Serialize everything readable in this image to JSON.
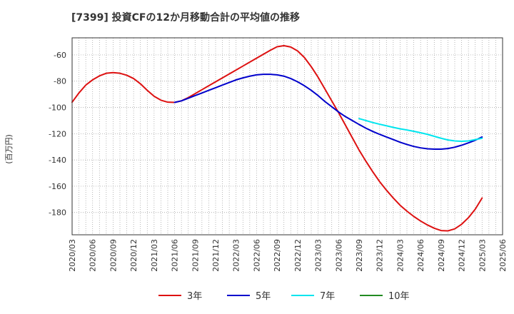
{
  "chart_data": {
    "type": "line",
    "title": "[7399]  投資CFの12か月移動合計の平均値の推移",
    "ylabel": "(百万円)",
    "xlabel": "",
    "ylim": [
      -197,
      -47
    ],
    "yticks": [
      -60,
      -80,
      -100,
      -120,
      -140,
      -160,
      -180
    ],
    "ytick_labels": [
      "-60",
      "-80",
      "-100",
      "-120",
      "-140",
      "-160",
      "-180"
    ],
    "xticks": [
      "2020/03",
      "2020/06",
      "2020/09",
      "2020/12",
      "2021/03",
      "2021/06",
      "2021/09",
      "2021/12",
      "2022/03",
      "2022/06",
      "2022/09",
      "2022/12",
      "2023/03",
      "2023/06",
      "2023/09",
      "2023/12",
      "2024/03",
      "2024/06",
      "2024/09",
      "2024/12",
      "2025/03",
      "2025/06"
    ],
    "x_start": "2020/03",
    "x_end": "2025/06",
    "grid": true,
    "legend_position": "bottom",
    "series": [
      {
        "name": "3年",
        "color": "#dd1111",
        "points": [
          [
            "2020/03",
            -96
          ],
          [
            "2020/04",
            -89
          ],
          [
            "2020/05",
            -83
          ],
          [
            "2020/06",
            -79
          ],
          [
            "2020/07",
            -76
          ],
          [
            "2020/08",
            -74
          ],
          [
            "2020/09",
            -73.5
          ],
          [
            "2020/10",
            -74
          ],
          [
            "2020/11",
            -75.5
          ],
          [
            "2020/12",
            -78
          ],
          [
            "2021/01",
            -82
          ],
          [
            "2021/02",
            -87
          ],
          [
            "2021/03",
            -91.5
          ],
          [
            "2021/04",
            -94.5
          ],
          [
            "2021/05",
            -96
          ],
          [
            "2021/06",
            -96.2
          ],
          [
            "2021/07",
            -95
          ],
          [
            "2021/08",
            -92.5
          ],
          [
            "2021/09",
            -89.5
          ],
          [
            "2021/10",
            -86.5
          ],
          [
            "2021/11",
            -83.5
          ],
          [
            "2021/12",
            -80.5
          ],
          [
            "2022/01",
            -77.5
          ],
          [
            "2022/02",
            -74.5
          ],
          [
            "2022/03",
            -71.5
          ],
          [
            "2022/04",
            -68.5
          ],
          [
            "2022/05",
            -65.5
          ],
          [
            "2022/06",
            -62.5
          ],
          [
            "2022/07",
            -59.5
          ],
          [
            "2022/08",
            -56.5
          ],
          [
            "2022/09",
            -53.8
          ],
          [
            "2022/10",
            -53
          ],
          [
            "2022/11",
            -54
          ],
          [
            "2022/12",
            -57
          ],
          [
            "2023/01",
            -62
          ],
          [
            "2023/02",
            -69
          ],
          [
            "2023/03",
            -77
          ],
          [
            "2023/04",
            -86
          ],
          [
            "2023/05",
            -95
          ],
          [
            "2023/06",
            -104
          ],
          [
            "2023/07",
            -113.5
          ],
          [
            "2023/08",
            -123
          ],
          [
            "2023/09",
            -132.5
          ],
          [
            "2023/10",
            -141
          ],
          [
            "2023/11",
            -149
          ],
          [
            "2023/12",
            -156.5
          ],
          [
            "2024/01",
            -163
          ],
          [
            "2024/02",
            -169
          ],
          [
            "2024/03",
            -174.5
          ],
          [
            "2024/04",
            -179
          ],
          [
            "2024/05",
            -183
          ],
          [
            "2024/06",
            -186.5
          ],
          [
            "2024/07",
            -189.5
          ],
          [
            "2024/08",
            -192
          ],
          [
            "2024/09",
            -193.8
          ],
          [
            "2024/10",
            -194
          ],
          [
            "2024/11",
            -192.5
          ],
          [
            "2024/12",
            -189
          ],
          [
            "2025/01",
            -184
          ],
          [
            "2025/02",
            -177.5
          ],
          [
            "2025/03",
            -169
          ]
        ]
      },
      {
        "name": "5年",
        "color": "#0000cc",
        "points": [
          [
            "2021/06",
            -96.2
          ],
          [
            "2021/07",
            -95
          ],
          [
            "2021/08",
            -93
          ],
          [
            "2021/09",
            -91
          ],
          [
            "2021/10",
            -89
          ],
          [
            "2021/11",
            -87
          ],
          [
            "2021/12",
            -85
          ],
          [
            "2022/01",
            -83
          ],
          [
            "2022/02",
            -81
          ],
          [
            "2022/03",
            -79
          ],
          [
            "2022/04",
            -77.5
          ],
          [
            "2022/05",
            -76.2
          ],
          [
            "2022/06",
            -75.2
          ],
          [
            "2022/07",
            -74.8
          ],
          [
            "2022/08",
            -74.8
          ],
          [
            "2022/09",
            -75.2
          ],
          [
            "2022/10",
            -76.2
          ],
          [
            "2022/11",
            -78
          ],
          [
            "2022/12",
            -80.5
          ],
          [
            "2023/01",
            -83.5
          ],
          [
            "2023/02",
            -87
          ],
          [
            "2023/03",
            -91
          ],
          [
            "2023/04",
            -95.5
          ],
          [
            "2023/05",
            -99.5
          ],
          [
            "2023/06",
            -103.5
          ],
          [
            "2023/07",
            -107
          ],
          [
            "2023/08",
            -110
          ],
          [
            "2023/09",
            -113
          ],
          [
            "2023/10",
            -115.8
          ],
          [
            "2023/11",
            -118.3
          ],
          [
            "2023/12",
            -120.5
          ],
          [
            "2024/01",
            -122.5
          ],
          [
            "2024/02",
            -124.5
          ],
          [
            "2024/03",
            -126.5
          ],
          [
            "2024/04",
            -128.2
          ],
          [
            "2024/05",
            -129.7
          ],
          [
            "2024/06",
            -130.8
          ],
          [
            "2024/07",
            -131.5
          ],
          [
            "2024/08",
            -131.8
          ],
          [
            "2024/09",
            -131.8
          ],
          [
            "2024/10",
            -131.3
          ],
          [
            "2024/11",
            -130.3
          ],
          [
            "2024/12",
            -128.8
          ],
          [
            "2025/01",
            -127
          ],
          [
            "2025/02",
            -125
          ],
          [
            "2025/03",
            -122.5
          ]
        ]
      },
      {
        "name": "7年",
        "color": "#00e5ee",
        "points": [
          [
            "2023/09",
            -108.5
          ],
          [
            "2023/10",
            -110
          ],
          [
            "2023/11",
            -111.5
          ],
          [
            "2023/12",
            -112.8
          ],
          [
            "2024/01",
            -114
          ],
          [
            "2024/02",
            -115.2
          ],
          [
            "2024/03",
            -116.3
          ],
          [
            "2024/04",
            -117.2
          ],
          [
            "2024/05",
            -118.2
          ],
          [
            "2024/06",
            -119.3
          ],
          [
            "2024/07",
            -120.5
          ],
          [
            "2024/08",
            -122
          ],
          [
            "2024/09",
            -123.5
          ],
          [
            "2024/10",
            -124.8
          ],
          [
            "2024/11",
            -125.5
          ],
          [
            "2024/12",
            -125.8
          ],
          [
            "2025/01",
            -125.5
          ],
          [
            "2025/02",
            -124.5
          ],
          [
            "2025/03",
            -123.5
          ]
        ]
      },
      {
        "name": "10年",
        "color": "#228b22",
        "points": []
      }
    ]
  }
}
